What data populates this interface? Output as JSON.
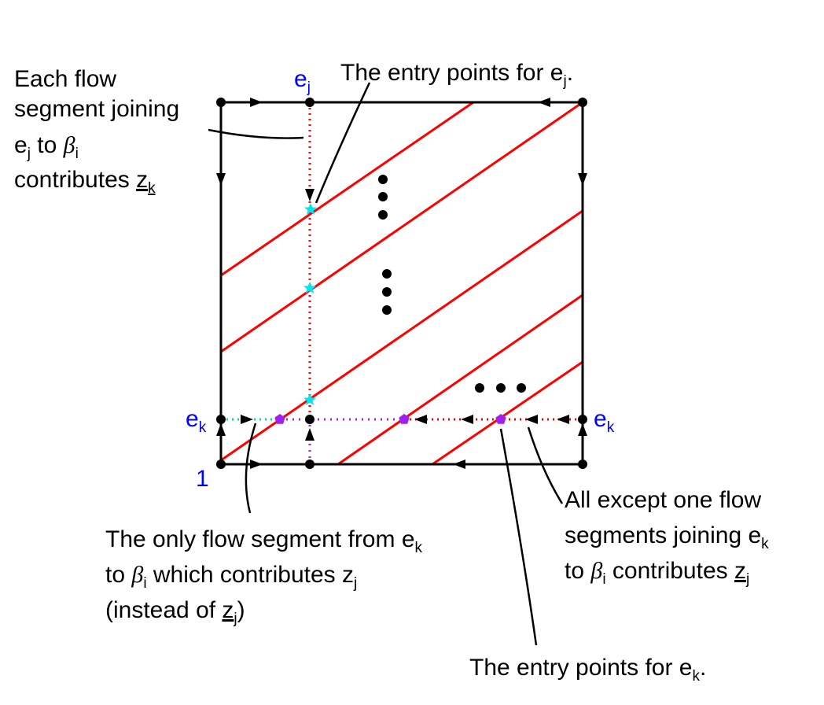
{
  "labels": {
    "ej": {
      "base": "e",
      "sub": "j"
    },
    "ek_left": {
      "base": "e",
      "sub": "k"
    },
    "ek_right": {
      "base": "e",
      "sub": "k"
    },
    "one": "1"
  },
  "annotations": {
    "top_left": {
      "line1": "Each flow",
      "line2": "segment joining",
      "line3_e": "e",
      "line3_sub": "j",
      "line3_to": " to ",
      "line3_beta": "β",
      "line3_bsub": "i",
      "line4": "contributes ",
      "line4_z": "z",
      "line4_zsub": "k"
    },
    "top_center": {
      "text": "The entry points for e",
      "sub": "j",
      "end": "."
    },
    "bottom_left": {
      "line1": "The only flow segment from e",
      "line1_sub": "k",
      "line2_to": "to ",
      "line2_beta": "β",
      "line2_bsub": "i",
      "line2_rest": " which contributes z",
      "line2_zsub": "j",
      "line3": "(instead of ",
      "line3_z": "z",
      "line3_zsub": "j",
      "line3_end": ")"
    },
    "bottom_right": {
      "line1": "All except one flow",
      "line2": "segments joining e",
      "line2_sub": "k",
      "line3_to": "to ",
      "line3_beta": "β",
      "line3_bsub": "i",
      "line3_rest": " contributes ",
      "line3_z": "z",
      "line3_zsub": "j"
    },
    "bottom_center": {
      "text": "The entry points for e",
      "sub": "k",
      "end": "."
    }
  },
  "colors": {
    "square": "#000000",
    "flow_lines": "#ff0000",
    "vertical_dotted": "#ff0000",
    "green_dotted": "#00e676",
    "purple_dotted": "#a020f0",
    "cyan_markers": "#00e5ee",
    "purple_markers": "#a020f0",
    "label_blue": "#0000ff"
  },
  "icons": [
    "star-marker",
    "pentagon-marker",
    "arrowhead",
    "vertex-dot",
    "ellipsis-dots"
  ]
}
